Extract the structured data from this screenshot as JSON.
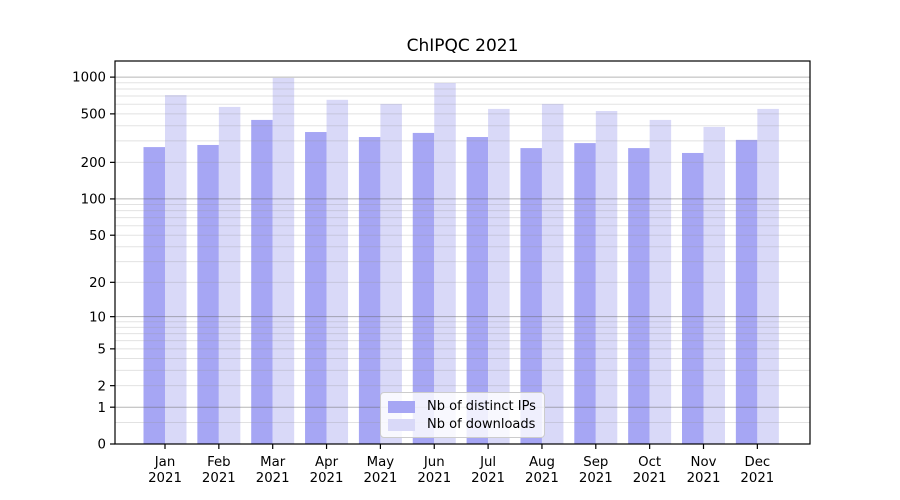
{
  "title": "ChIPQC 2021",
  "chart_data": {
    "type": "bar",
    "title": "ChIPQC 2021",
    "categories": [
      "Jan",
      "Feb",
      "Mar",
      "Apr",
      "May",
      "Jun",
      "Jul",
      "Aug",
      "Sep",
      "Oct",
      "Nov",
      "Dec"
    ],
    "category_year": "2021",
    "series": [
      {
        "name": "Nb of distinct IPs",
        "color": "#a6a6f4",
        "values": [
          267,
          278,
          446,
          355,
          323,
          349,
          323,
          262,
          288,
          262,
          239,
          306
        ]
      },
      {
        "name": "Nb of downloads",
        "color": "#d9d9f8",
        "values": [
          713,
          570,
          985,
          652,
          603,
          895,
          549,
          603,
          528,
          446,
          391,
          549
        ]
      }
    ],
    "xlabel": "",
    "ylabel": "",
    "yscale": "log1p",
    "ylim": [
      0,
      1355
    ],
    "yticks": [
      0,
      1,
      2,
      5,
      10,
      20,
      50,
      100,
      200,
      500,
      1000
    ],
    "major_gridlines": [
      1,
      10,
      100,
      1000
    ],
    "minor_gridlines": [
      0.5,
      2,
      3,
      4,
      5,
      6,
      7,
      8,
      9,
      20,
      30,
      40,
      50,
      60,
      70,
      80,
      90,
      200,
      300,
      400,
      500,
      600,
      700,
      800,
      900
    ],
    "grid": "horizontal",
    "legend_position": "lower center",
    "style": {
      "spine_color": "#000000",
      "grid_minor_color": "rgba(150,150,150,0.28)",
      "grid_major_color": "rgba(100,100,100,0.48)"
    }
  }
}
